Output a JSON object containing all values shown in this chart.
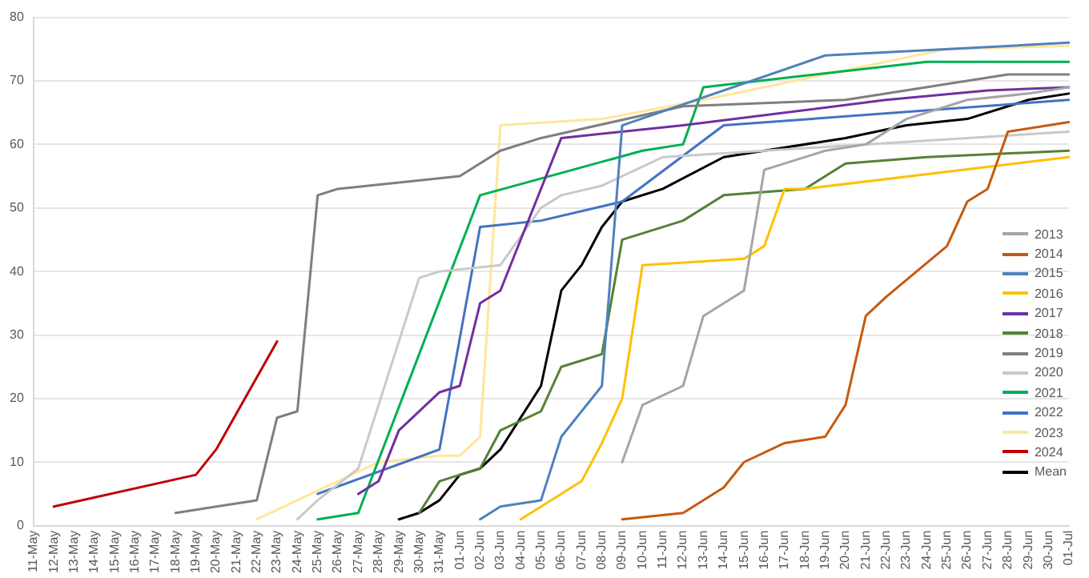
{
  "chart_data": {
    "type": "line",
    "categories": [
      "11-May",
      "12-May",
      "13-May",
      "14-May",
      "15-May",
      "16-May",
      "17-May",
      "18-May",
      "19-May",
      "20-May",
      "21-May",
      "22-May",
      "23-May",
      "24-May",
      "25-May",
      "26-May",
      "27-May",
      "28-May",
      "29-May",
      "30-May",
      "31-May",
      "01-Jun",
      "02-Jun",
      "03-Jun",
      "04-Jun",
      "05-Jun",
      "06-Jun",
      "07-Jun",
      "08-Jun",
      "09-Jun",
      "10-Jun",
      "11-Jun",
      "12-Jun",
      "13-Jun",
      "14-Jun",
      "15-Jun",
      "16-Jun",
      "17-Jun",
      "18-Jun",
      "19-Jun",
      "20-Jun",
      "21-Jun",
      "22-Jun",
      "23-Jun",
      "24-Jun",
      "25-Jun",
      "26-Jun",
      "27-Jun",
      "28-Jun",
      "29-Jun",
      "30-Jun",
      "01-Jul"
    ],
    "series": [
      {
        "name": "2013",
        "color": "#a5a5a5",
        "x": [
          "09-Jun",
          "10-Jun",
          "12-Jun",
          "13-Jun",
          "15-Jun",
          "16-Jun",
          "19-Jun",
          "21-Jun",
          "23-Jun",
          "26-Jun",
          "29-Jun",
          "01-Jul"
        ],
        "values": [
          10,
          19,
          22,
          33,
          37,
          56,
          59,
          60,
          64,
          67,
          68,
          69
        ]
      },
      {
        "name": "2014",
        "color": "#c55a11",
        "x": [
          "09-Jun",
          "12-Jun",
          "14-Jun",
          "15-Jun",
          "17-Jun",
          "19-Jun",
          "20-Jun",
          "21-Jun",
          "22-Jun",
          "25-Jun",
          "26-Jun",
          "27-Jun",
          "28-Jun",
          "01-Jul"
        ],
        "values": [
          1,
          2,
          6,
          10,
          13,
          14,
          19,
          33,
          36,
          44,
          51,
          53,
          62,
          63.5
        ]
      },
      {
        "name": "2015",
        "color": "#4f81bd",
        "x": [
          "02-Jun",
          "03-Jun",
          "05-Jun",
          "06-Jun",
          "08-Jun",
          "09-Jun",
          "19-Jun",
          "01-Jul"
        ],
        "values": [
          1,
          3,
          4,
          14,
          22,
          63,
          74,
          76
        ]
      },
      {
        "name": "2016",
        "color": "#ffc000",
        "x": [
          "04-Jun",
          "07-Jun",
          "08-Jun",
          "09-Jun",
          "10-Jun",
          "15-Jun",
          "16-Jun",
          "17-Jun",
          "18-Jun",
          "01-Jul"
        ],
        "values": [
          1,
          7,
          13,
          20,
          41,
          42,
          44,
          53,
          53,
          58
        ]
      },
      {
        "name": "2017",
        "color": "#7030a0",
        "x": [
          "27-May",
          "28-May",
          "29-May",
          "31-May",
          "01-Jun",
          "02-Jun",
          "03-Jun",
          "06-Jun",
          "12-Jun",
          "22-Jun",
          "27-Jun",
          "01-Jul"
        ],
        "values": [
          5,
          7,
          15,
          21,
          22,
          35,
          37,
          61,
          63,
          67,
          68.5,
          69
        ]
      },
      {
        "name": "2018",
        "color": "#548235",
        "x": [
          "30-May",
          "31-May",
          "01-Jun",
          "02-Jun",
          "03-Jun",
          "05-Jun",
          "06-Jun",
          "08-Jun",
          "09-Jun",
          "12-Jun",
          "14-Jun",
          "18-Jun",
          "20-Jun",
          "24-Jun",
          "01-Jul"
        ],
        "values": [
          2,
          7,
          8,
          9,
          15,
          18,
          25,
          27,
          45,
          48,
          52,
          53,
          57,
          58,
          59
        ]
      },
      {
        "name": "2019",
        "color": "#7f7f7f",
        "x": [
          "18-May",
          "22-May",
          "23-May",
          "24-May",
          "25-May",
          "26-May",
          "01-Jun",
          "03-Jun",
          "05-Jun",
          "12-Jun",
          "20-Jun",
          "28-Jun",
          "01-Jul"
        ],
        "values": [
          2,
          4,
          17,
          18,
          52,
          53,
          55,
          59,
          61,
          66,
          67,
          71,
          71
        ]
      },
      {
        "name": "2020",
        "color": "#c9c9c9",
        "x": [
          "24-May",
          "25-May",
          "27-May",
          "30-May",
          "31-May",
          "03-Jun",
          "05-Jun",
          "06-Jun",
          "08-Jun",
          "11-Jun",
          "01-Jul"
        ],
        "values": [
          1,
          4,
          9,
          39,
          40,
          41,
          50,
          52,
          53.5,
          58,
          62
        ]
      },
      {
        "name": "2021",
        "color": "#00b050",
        "x": [
          "25-May",
          "27-May",
          "02-Jun",
          "10-Jun",
          "12-Jun",
          "13-Jun",
          "24-Jun",
          "01-Jul"
        ],
        "values": [
          1,
          2,
          52,
          59,
          60,
          69,
          73,
          73
        ]
      },
      {
        "name": "2022",
        "color": "#4472c4",
        "x": [
          "25-May",
          "31-May",
          "02-Jun",
          "05-Jun",
          "09-Jun",
          "14-Jun",
          "01-Jul"
        ],
        "values": [
          5,
          12,
          47,
          48,
          51,
          63,
          67
        ]
      },
      {
        "name": "2023",
        "color": "#ffe699",
        "x": [
          "22-May",
          "28-May",
          "31-May",
          "01-Jun",
          "02-Jun",
          "03-Jun",
          "08-Jun",
          "13-Jun",
          "19-Jun",
          "25-Jun",
          "01-Jul"
        ],
        "values": [
          1,
          10,
          11,
          11,
          14,
          63,
          64,
          67,
          71,
          75,
          75.5
        ]
      },
      {
        "name": "2024",
        "color": "#c00000",
        "x": [
          "12-May",
          "19-May",
          "20-May",
          "23-May"
        ],
        "values": [
          3,
          8,
          12,
          29
        ]
      },
      {
        "name": "Mean",
        "color": "#000000",
        "x": [
          "29-May",
          "30-May",
          "31-May",
          "01-Jun",
          "02-Jun",
          "03-Jun",
          "05-Jun",
          "06-Jun",
          "07-Jun",
          "08-Jun",
          "09-Jun",
          "11-Jun",
          "14-Jun",
          "16-Jun",
          "20-Jun",
          "23-Jun",
          "26-Jun",
          "29-Jun",
          "01-Jul"
        ],
        "values": [
          1,
          2,
          4,
          8,
          9,
          12,
          22,
          37,
          41,
          47,
          51,
          53,
          58,
          59,
          61,
          63,
          64,
          67,
          68
        ]
      }
    ],
    "ylim": [
      0,
      80
    ],
    "yticks": [
      0,
      10,
      20,
      30,
      40,
      50,
      60,
      70,
      80
    ],
    "grid": "y",
    "legend": "right",
    "marker": "none",
    "line_style": "solid"
  }
}
